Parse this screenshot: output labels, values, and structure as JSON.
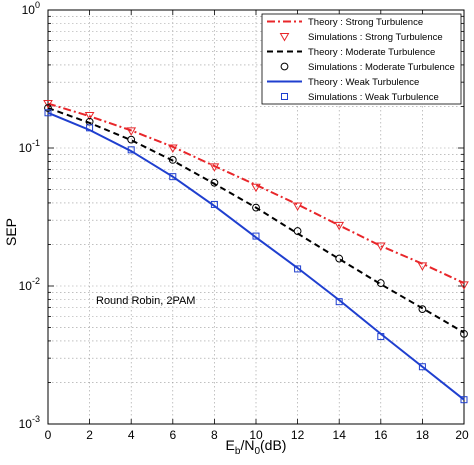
{
  "chart_data": {
    "type": "line",
    "title": "",
    "xlabel": {
      "base": "E",
      "sub1": "b",
      "mid": "/N",
      "sub2": "0",
      "tail": "(dB)"
    },
    "ylabel": "SEP",
    "xlim": [
      0,
      20
    ],
    "ylim": [
      0.001,
      1
    ],
    "yscale": "log",
    "grid": true,
    "x_ticks": [
      0,
      2,
      4,
      6,
      8,
      10,
      12,
      14,
      16,
      18,
      20
    ],
    "x_tick_labels": [
      "0",
      "2",
      "4",
      "6",
      "8",
      "10",
      "12",
      "14",
      "16",
      "18",
      "20"
    ],
    "y_ticks": [
      {
        "value": 1,
        "base": "10",
        "exp": "0"
      },
      {
        "value": 0.1,
        "base": "10",
        "exp": "-1"
      },
      {
        "value": 0.01,
        "base": "10",
        "exp": "-2"
      },
      {
        "value": 0.001,
        "base": "10",
        "exp": "-3"
      }
    ],
    "legend_position": "top-right",
    "annotation": "Round Robin, 2PAM",
    "series": [
      {
        "name": "Theory : Strong Turbulence",
        "kind": "line",
        "color": "#e8262a",
        "dash": "dash-dot",
        "x": [
          0,
          2,
          4,
          6,
          8,
          10,
          12,
          14,
          16,
          18,
          20
        ],
        "y": [
          0.21,
          0.17,
          0.134,
          0.102,
          0.074,
          0.054,
          0.039,
          0.0275,
          0.0195,
          0.0145,
          0.0105
        ]
      },
      {
        "name": "Simulations : Strong Turbulence",
        "kind": "marker",
        "marker": "triangle-down",
        "color": "#e8262a",
        "x": [
          0,
          2,
          4,
          6,
          8,
          10,
          12,
          14,
          16,
          18,
          20
        ],
        "y": [
          0.21,
          0.172,
          0.133,
          0.1,
          0.073,
          0.052,
          0.038,
          0.0275,
          0.0195,
          0.014,
          0.0102
        ]
      },
      {
        "name": "Theory : Moderate Turbulence",
        "kind": "line",
        "color": "#000000",
        "dash": "dashed",
        "x": [
          0,
          2,
          4,
          6,
          8,
          10,
          12,
          14,
          16,
          18,
          20
        ],
        "y": [
          0.195,
          0.152,
          0.114,
          0.081,
          0.055,
          0.037,
          0.024,
          0.0157,
          0.0103,
          0.0069,
          0.0046
        ]
      },
      {
        "name": "Simulations : Moderate Turbulence",
        "kind": "marker",
        "marker": "circle",
        "color": "#000000",
        "x": [
          0,
          2,
          4,
          6,
          8,
          10,
          12,
          14,
          16,
          18,
          20
        ],
        "y": [
          0.195,
          0.155,
          0.115,
          0.082,
          0.056,
          0.037,
          0.025,
          0.0158,
          0.0105,
          0.0068,
          0.0045
        ]
      },
      {
        "name": "Theory : Weak Turbulence",
        "kind": "line",
        "color": "#1f3fcf",
        "dash": "solid",
        "x": [
          0,
          2,
          4,
          6,
          8,
          10,
          12,
          14,
          16,
          18,
          20
        ],
        "y": [
          0.18,
          0.135,
          0.095,
          0.062,
          0.038,
          0.0225,
          0.0135,
          0.0079,
          0.0045,
          0.0026,
          0.0015
        ]
      },
      {
        "name": "Simulations : Weak Turbulence",
        "kind": "marker",
        "marker": "square",
        "color": "#1f3fcf",
        "x": [
          0,
          2,
          4,
          6,
          8,
          10,
          12,
          14,
          16,
          18,
          20
        ],
        "y": [
          0.18,
          0.14,
          0.097,
          0.062,
          0.039,
          0.023,
          0.0133,
          0.0077,
          0.0043,
          0.0026,
          0.0015
        ]
      }
    ]
  }
}
